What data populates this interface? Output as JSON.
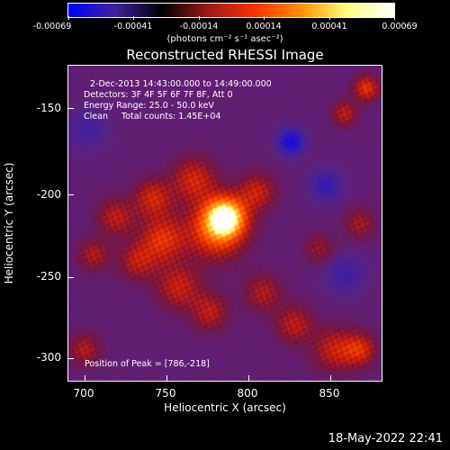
{
  "colorbar": {
    "ticks": [
      "-0.00069",
      "-0.00041",
      "-0.00014",
      "0.00014",
      "0.00041",
      "0.00069"
    ],
    "unit": "(photons cm⁻² s⁻¹ asec⁻²)",
    "colors": [
      "#0000ff",
      "#4020a0",
      "#000000",
      "#a01818",
      "#ff3000",
      "#ff9000",
      "#ffff80",
      "#ffffff"
    ]
  },
  "plot": {
    "title": "Reconstructed RHESSI Image",
    "info": {
      "time": "2-Dec-2013 14:43:00.000 to 14:49:00.000",
      "detectors": "Detectors: 3F 4F 5F 6F 7F 8F, Att 0",
      "energy": "Energy Range: 25.0 - 50.0 keV",
      "clean": "Clean     Total counts: 1.45E+04"
    },
    "peak": "Position of Peak = [786,-218]",
    "x_axis": {
      "label": "Heliocentric X (arcsec)",
      "ticks": [
        "700",
        "750",
        "800",
        "850"
      ]
    },
    "y_axis": {
      "label": "Heliocentric Y (arcsec)",
      "ticks": [
        "-150",
        "-200",
        "-250",
        "-300"
      ]
    }
  },
  "footer": {
    "datestamp": "18-May-2022 22:41"
  }
}
